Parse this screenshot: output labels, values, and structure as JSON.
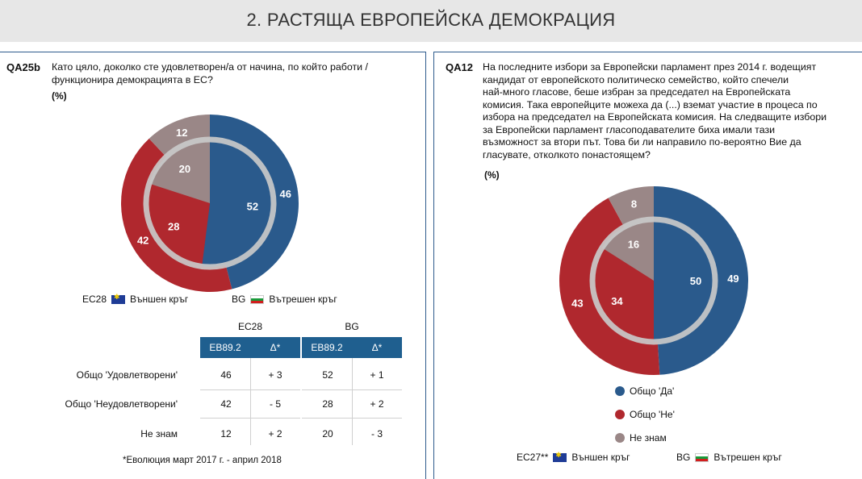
{
  "page_title": "2. РАСТЯЩА ЕВРОПЕЙСКА ДЕМОКРАЦИЯ",
  "colors": {
    "blue": "#2a5a8c",
    "red": "#b0282e",
    "grey": "#9a8787",
    "header_blue": "#1f5f8f"
  },
  "left": {
    "qid": "QA25b",
    "question_lines": [
      "Като цяло, доколко сте удовлетворен/а от начина, по който работи /",
      "функционира демокрацията в ЕС?"
    ],
    "pct_label": "(%)",
    "legend": {
      "outer_code": "ЕС28",
      "outer_label": "Външен кръг",
      "inner_code": "BG",
      "inner_label": "Вътрешен кръг"
    },
    "table": {
      "group1": "ЕС28",
      "group2": "BG",
      "col_eb": "EB89.2",
      "col_delta": "Δ*",
      "rows": [
        {
          "label": "Общо 'Удовлетворени'",
          "eu": "46",
          "eu_delta": "+ 3",
          "bg": "52",
          "bg_delta": "+ 1"
        },
        {
          "label": "Общо 'Неудовлетворени'",
          "eu": "42",
          "eu_delta": "- 5",
          "bg": "28",
          "bg_delta": "+ 2"
        },
        {
          "label": "Не знам",
          "eu": "12",
          "eu_delta": "+ 2",
          "bg": "20",
          "bg_delta": "- 3"
        }
      ]
    },
    "footnote": "*Еволюция март 2017 г. - април 2018"
  },
  "right": {
    "qid": "QA12",
    "question_lines": [
      "На последните избори за Европейски парламент през 2014 г. водещият",
      "кандидат от европейското политическо семейство, който спечели",
      "най-много гласове, беше избран за председател на Европейската",
      "комисия. Така европейците можеха да (...) вземат участие в процеса по",
      "избора на председател на Европейската комисия. На следващите избори",
      "за Европейски парламент гласоподавателите биха имали тази",
      "възможност за втори път. Това би ли направило по-вероятно Вие да",
      "гласувате, отколкото понастоящем?"
    ],
    "pct_label": "(%)",
    "categories_legend": [
      "Общо 'Да'",
      "Общо 'Не'",
      "Не знам"
    ],
    "legend": {
      "outer_code": "ЕС27**",
      "outer_label": "Външен кръг",
      "inner_code": "BG",
      "inner_label": "Вътрешен кръг"
    }
  },
  "chart_data": [
    {
      "type": "pie",
      "title": "QA25b",
      "categories": [
        "Общо 'Удовлетворени'",
        "Общо 'Неудовлетворени'",
        "Не знам"
      ],
      "series": [
        {
          "name": "ЕС28",
          "values": [
            46,
            42,
            12
          ]
        },
        {
          "name": "BG",
          "values": [
            52,
            28,
            20
          ]
        }
      ]
    },
    {
      "type": "pie",
      "title": "QA12",
      "categories": [
        "Общо 'Да'",
        "Общо 'Не'",
        "Не знам"
      ],
      "series": [
        {
          "name": "ЕС27**",
          "values": [
            49,
            43,
            8
          ]
        },
        {
          "name": "BG",
          "values": [
            50,
            34,
            16
          ]
        }
      ]
    }
  ]
}
